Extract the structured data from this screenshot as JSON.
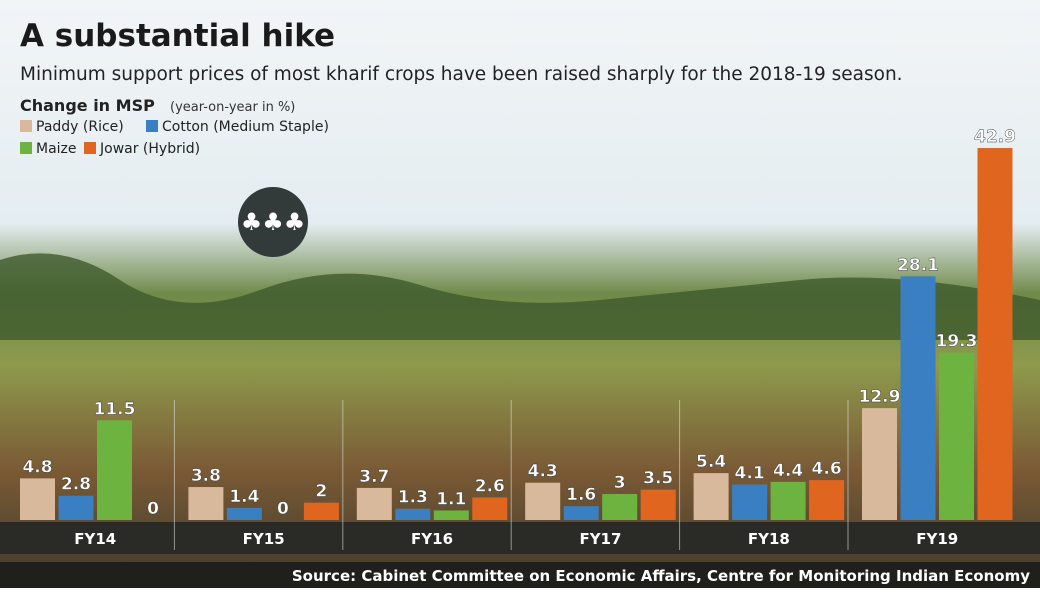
{
  "chart_data": {
    "type": "bar",
    "title": "A substantial hike",
    "subtitle": "Minimum support prices of most kharif crops have been raised sharply for the 2018-19 season.",
    "y_label": "Change in MSP",
    "y_label_note": "(year-on-year in %)",
    "source": "Source: Cabinet Committee on Economic Affairs, Centre for Monitoring Indian Economy",
    "categories": [
      "FY14",
      "FY15",
      "FY16",
      "FY17",
      "FY18",
      "FY19"
    ],
    "series": [
      {
        "name": "Paddy (Rice)",
        "color": "#d9b99b",
        "values": [
          4.8,
          3.8,
          3.7,
          4.3,
          5.4,
          12.9
        ]
      },
      {
        "name": "Cotton (Medium Staple)",
        "color": "#3a7fc1",
        "values": [
          2.8,
          1.4,
          1.3,
          1.6,
          4.1,
          28.1
        ]
      },
      {
        "name": "Maize",
        "color": "#6db33f",
        "values": [
          11.5,
          0,
          1.1,
          3,
          4.4,
          19.3
        ]
      },
      {
        "name": "Jowar (Hybrid)",
        "color": "#e0661f",
        "values": [
          0,
          2,
          2.6,
          3.5,
          4.6,
          42.9
        ]
      }
    ]
  }
}
